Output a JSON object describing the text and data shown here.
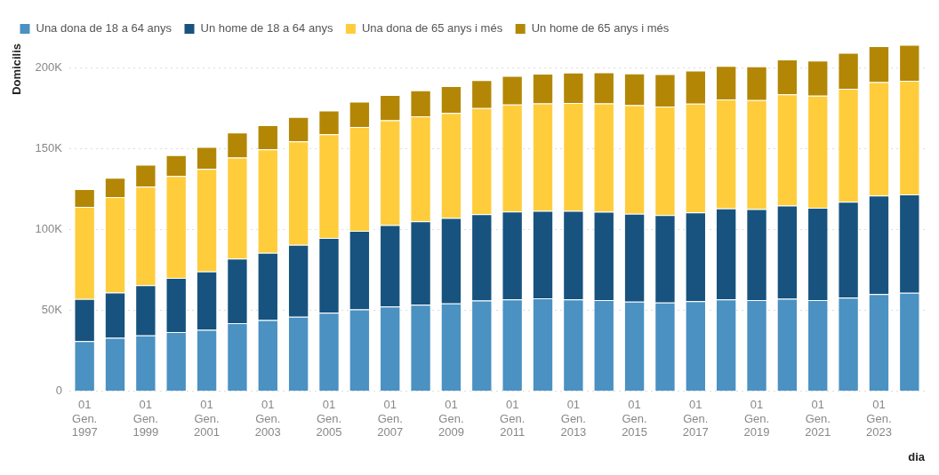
{
  "chart_data": {
    "type": "bar",
    "stacked": true,
    "xlabel": "dia",
    "ylabel": "Domicilis",
    "categories": [
      "01 Gen. 1997",
      null,
      "01 Gen. 1999",
      null,
      "01 Gen. 2001",
      null,
      "01 Gen. 2003",
      null,
      "01 Gen. 2005",
      null,
      "01 Gen. 2007",
      null,
      "01 Gen. 2009",
      null,
      "01 Gen. 2011",
      null,
      "01 Gen. 2013",
      null,
      "01 Gen. 2015",
      null,
      "01 Gen. 2017",
      null,
      "01 Gen. 2019",
      null,
      "01 Gen. 2021",
      null,
      "01 Gen. 2023",
      null
    ],
    "series": [
      {
        "name": "Una dona de 18 a 64 anys",
        "color": "#4b91c2",
        "values": [
          31000,
          33000,
          34500,
          36500,
          38000,
          42000,
          44000,
          46000,
          48500,
          50600,
          52400,
          53500,
          54300,
          56000,
          56800,
          57400,
          56800,
          56300,
          55400,
          54800,
          55700,
          56800,
          56300,
          57200,
          56300,
          57900,
          60000,
          60900
        ]
      },
      {
        "name": "Un home de 18 a 64 anys",
        "color": "#17537e",
        "values": [
          26000,
          28000,
          31000,
          33500,
          36000,
          40000,
          41500,
          44500,
          46200,
          48600,
          50300,
          51500,
          52800,
          53500,
          54300,
          54100,
          54700,
          54700,
          54300,
          54100,
          54900,
          56200,
          56300,
          57600,
          57100,
          59300,
          61000,
          60800
        ]
      },
      {
        "name": "Una dona de 65 anys i més",
        "color": "#ffcd3c",
        "values": [
          57000,
          59000,
          61000,
          63000,
          63500,
          62500,
          64000,
          64000,
          64100,
          64200,
          64800,
          65000,
          64900,
          65500,
          66200,
          66500,
          66700,
          67000,
          67200,
          67100,
          67200,
          67400,
          67400,
          68700,
          69400,
          69800,
          70100,
          70200
        ]
      },
      {
        "name": "Un home de 65 anys i més",
        "color": "#b38705",
        "values": [
          11000,
          12000,
          13500,
          13000,
          13500,
          15500,
          15000,
          15000,
          14800,
          15600,
          15700,
          16100,
          16700,
          17400,
          17700,
          18300,
          18800,
          19200,
          19600,
          20100,
          20500,
          20700,
          20900,
          21600,
          21600,
          22200,
          22200,
          22300
        ]
      }
    ],
    "ylim": [
      0,
      215000
    ],
    "yticks": [
      {
        "value": 0,
        "label": "0"
      },
      {
        "value": 50000,
        "label": "50K"
      },
      {
        "value": 100000,
        "label": "100K"
      },
      {
        "value": 150000,
        "label": "150K"
      },
      {
        "value": 200000,
        "label": "200K"
      }
    ],
    "grid": "y",
    "legend": "top left"
  }
}
